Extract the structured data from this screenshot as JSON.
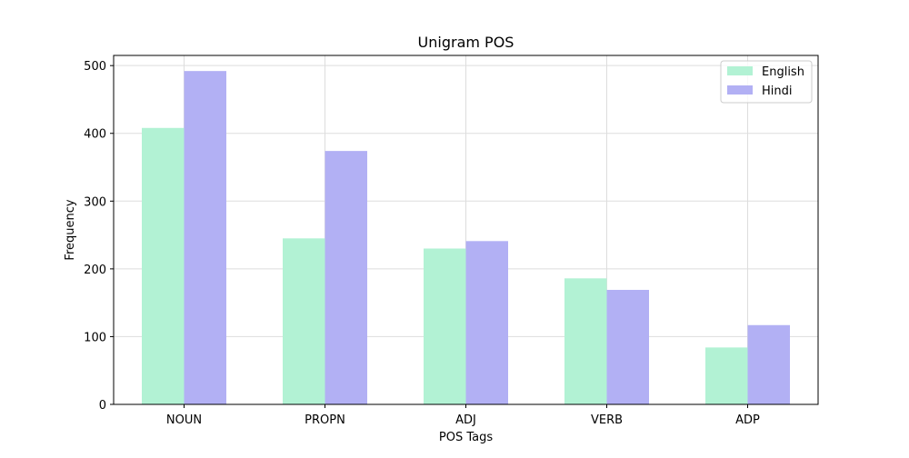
{
  "chart_data": {
    "type": "bar",
    "title": "Unigram POS",
    "xlabel": "POS Tags",
    "ylabel": "Frequency",
    "categories": [
      "NOUN",
      "PROPN",
      "ADJ",
      "VERB",
      "ADP"
    ],
    "ylim": [
      0,
      515
    ],
    "yticks": [
      0,
      100,
      200,
      300,
      400,
      500
    ],
    "grid": true,
    "legend_position": "top-right",
    "series": [
      {
        "name": "English",
        "color": "#b2f2d4",
        "values": [
          408,
          245,
          230,
          186,
          84
        ]
      },
      {
        "name": "Hindi",
        "color": "#b2b0f4",
        "values": [
          492,
          374,
          241,
          169,
          117
        ]
      }
    ]
  }
}
